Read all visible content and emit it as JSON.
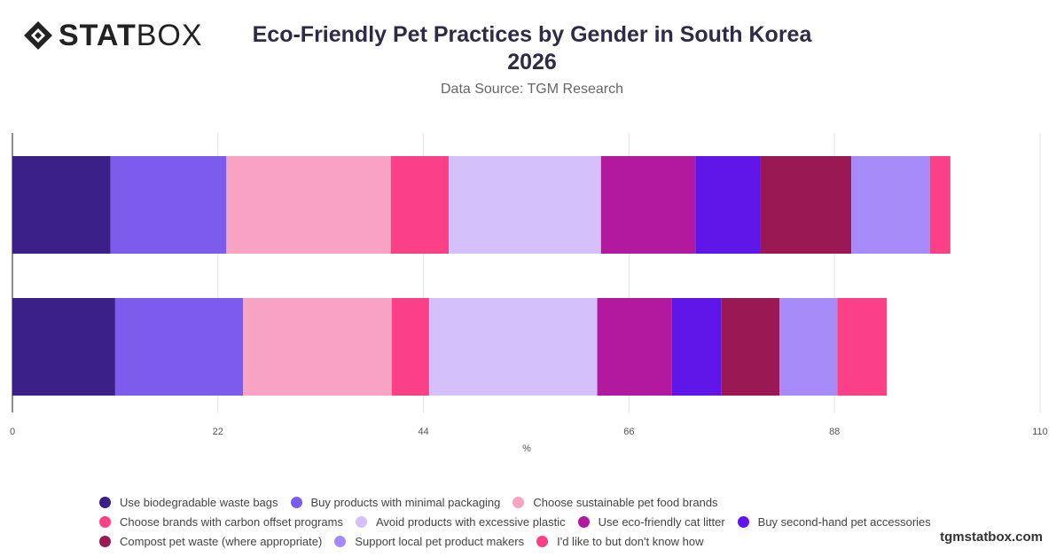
{
  "brand": {
    "logo_bold": "STAT",
    "logo_light": "BOX",
    "watermark": "tgmstatbox.com"
  },
  "header": {
    "title_line1": "Eco-Friendly Pet Practices by Gender in South Korea",
    "title_line2": "2026",
    "subtitle": "Data Source: TGM Research"
  },
  "chart_data": {
    "type": "bar",
    "orientation": "horizontal",
    "stacked": true,
    "categories": [
      "",
      ""
    ],
    "xlabel": "%",
    "xlim": [
      0,
      110
    ],
    "xticks": [
      0,
      22,
      44,
      66,
      88,
      110
    ],
    "grid": true,
    "legend_position": "bottom",
    "series": [
      {
        "name": "Use biodegradable waste bags",
        "color": "#3a1f87",
        "values": [
          10.5,
          11
        ]
      },
      {
        "name": "Buy products with minimal packaging",
        "color": "#7b5ced",
        "values": [
          12.4,
          13.7
        ]
      },
      {
        "name": "Choose sustainable pet food brands",
        "color": "#f9a3c4",
        "values": [
          17.6,
          15.9
        ]
      },
      {
        "name": "Choose brands with carbon offset programs",
        "color": "#fb4088",
        "values": [
          6.2,
          4
        ]
      },
      {
        "name": "Avoid products with excessive plastic",
        "color": "#d4c0fb",
        "values": [
          16.3,
          18
        ]
      },
      {
        "name": "Use eco-friendly cat litter",
        "color": "#b2199f",
        "values": [
          10.1,
          8
        ]
      },
      {
        "name": "Buy second-hand pet accessories",
        "color": "#6016e8",
        "values": [
          7,
          5.3
        ]
      },
      {
        "name": "Compost pet waste (where appropriate)",
        "color": "#9a1853",
        "values": [
          9.7,
          6.2
        ]
      },
      {
        "name": "Support local pet product makers",
        "color": "#a68bf8",
        "values": [
          8.4,
          6.2
        ]
      },
      {
        "name": "I'd like to but don't know how",
        "color": "#fb4088",
        "values": [
          2.2,
          5.3
        ]
      }
    ]
  }
}
